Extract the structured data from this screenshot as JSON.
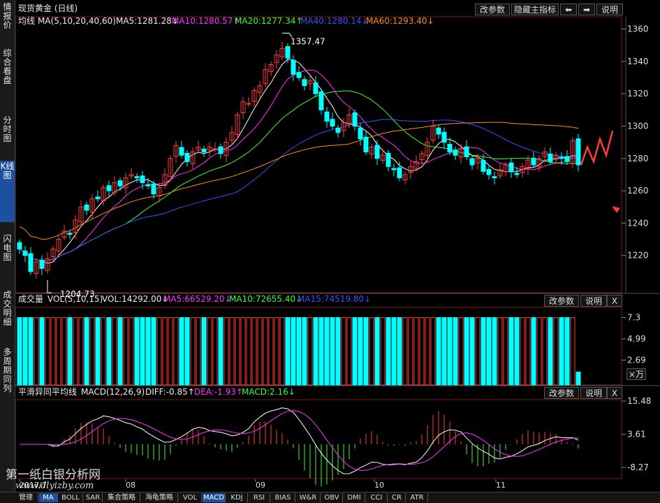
{
  "sidebar": {
    "items": [
      {
        "label": "情报价",
        "top": 2,
        "h": 40,
        "active": false
      },
      {
        "label": "综合看盘",
        "top": 68,
        "h": 60,
        "active": false
      },
      {
        "label": "分时图",
        "top": 164,
        "h": 44,
        "active": false
      },
      {
        "label": "K线图",
        "top": 230,
        "h": 86,
        "active": true
      },
      {
        "label": "闪电图",
        "top": 334,
        "h": 44,
        "active": false
      },
      {
        "label": "成交明细",
        "top": 414,
        "h": 60,
        "active": false
      },
      {
        "label": "多周期同列",
        "top": 496,
        "h": 72,
        "active": false
      }
    ]
  },
  "main": {
    "title": "现货黄金 (日线)",
    "ma_line": {
      "label": "均线",
      "params": "MA(5,10,20,40,60)",
      "ma5": "MA5:1281.28↓",
      "ma10": "MA10:1280.57↑",
      "ma20": "MA20:1277.34↑",
      "ma40": "MA40:1280.14↓",
      "ma60": "MA60:1293.40↓"
    },
    "buttons": {
      "change_params": "改参数",
      "hide_indicators": "隐藏主指标",
      "prev": "⬅",
      "next": "➡",
      "help": "说明"
    },
    "high_label": "1357.47",
    "low_label": "1204.73"
  },
  "volume": {
    "label": "成交量",
    "params": "VOL(5,10,15)",
    "vol": "VOL:14292.00↓",
    "ma5": "MA5:66529.20↓",
    "ma10": "MA10:72655.40↓",
    "ma15": "MA15:74519.80↓",
    "buttons": {
      "change_params": "改参数",
      "help": "说明",
      "close": "X"
    },
    "unit": "×万"
  },
  "macd": {
    "label": "平滑异同平均线",
    "params": "MACD(12,26,9)",
    "diff": "DIFF:-0.85↑",
    "dea": "DEA:-1.93↑",
    "macd": "MACD:2.16↓",
    "buttons": {
      "change_params": "改参数",
      "help": "说明",
      "close": "X"
    }
  },
  "x_axis": [
    "2017/7",
    "08",
    "09",
    "10",
    "11"
  ],
  "bottom_tabs": [
    "管理",
    "MA",
    "BOLL",
    "SAR",
    "集合策略",
    "海龟策略",
    "VOL",
    "MACD",
    "KDJ",
    "RSI",
    "BIAS",
    "W&R",
    "OBV",
    "DMI",
    "CCI",
    "CR",
    "ATR"
  ],
  "active_tabs": [
    "MA",
    "MACD"
  ],
  "watermark": {
    "line1": "第一纸白银分析网",
    "line2": "www.dlyizby.com"
  },
  "colors": {
    "up": "#ff3b3b",
    "down": "#00ffff",
    "ma5": "#ffffff",
    "ma10": "#ff33ff",
    "ma20": "#33ff33",
    "ma40": "#3355ff",
    "ma60": "#ff8c1a",
    "accent": "#1e50a0"
  },
  "chart_data": [
    {
      "type": "candlestick",
      "title": "现货黄金 (日线)",
      "y_ticks": [
        1220,
        1240,
        1260,
        1280,
        1300,
        1320,
        1340,
        1360
      ],
      "ylim": [
        1195,
        1365
      ],
      "high": 1357.47,
      "low": 1204.73,
      "closes": [
        1224,
        1220,
        1210,
        1216,
        1212,
        1218,
        1224,
        1230,
        1235,
        1233,
        1242,
        1250,
        1248,
        1255,
        1255,
        1262,
        1260,
        1265,
        1263,
        1268,
        1270,
        1268,
        1265,
        1263,
        1258,
        1262,
        1270,
        1280,
        1288,
        1282,
        1278,
        1284,
        1287,
        1284,
        1287,
        1286,
        1283,
        1290,
        1296,
        1307,
        1315,
        1314,
        1322,
        1325,
        1335,
        1338,
        1344,
        1348,
        1342,
        1332,
        1330,
        1325,
        1328,
        1320,
        1310,
        1303,
        1300,
        1296,
        1302,
        1307,
        1300,
        1292,
        1284,
        1287,
        1280,
        1282,
        1275,
        1273,
        1268,
        1270,
        1275,
        1278,
        1283,
        1290,
        1300,
        1295,
        1290,
        1284,
        1282,
        1286,
        1281,
        1276,
        1280,
        1272,
        1270,
        1268,
        1273,
        1276,
        1272,
        1270,
        1275,
        1279,
        1276,
        1280,
        1284,
        1278,
        1282,
        1280,
        1278,
        1291,
        1276
      ],
      "line_tails": [
        1276,
        1287,
        1278,
        1292,
        1282,
        1297
      ],
      "ma_series": [
        {
          "name": "MA5",
          "color": "#ffffff"
        },
        {
          "name": "MA10",
          "color": "#ff33ff"
        },
        {
          "name": "MA20",
          "color": "#33ff33"
        },
        {
          "name": "MA40",
          "color": "#3355ff"
        },
        {
          "name": "MA60",
          "color": "#ff8c1a"
        }
      ]
    },
    {
      "type": "bar",
      "title": "成交量",
      "y_ticks": [
        2.69,
        4.99,
        7.3
      ],
      "ylim": [
        0,
        8.4
      ],
      "unit": "×万",
      "values_rule": "each day ≈ 7.3 except last ≈ 1.4"
    },
    {
      "type": "bar",
      "title": "平滑异同平均线",
      "y_ticks": [
        -8.27,
        3.61,
        15.48
      ],
      "ylim": [
        -14,
        20
      ],
      "series": [
        {
          "name": "DIFF",
          "color": "#ffffff"
        },
        {
          "name": "DEA",
          "color": "#ff33ff"
        },
        {
          "name": "MACD",
          "color": "#ff3b3b"
        }
      ]
    }
  ]
}
